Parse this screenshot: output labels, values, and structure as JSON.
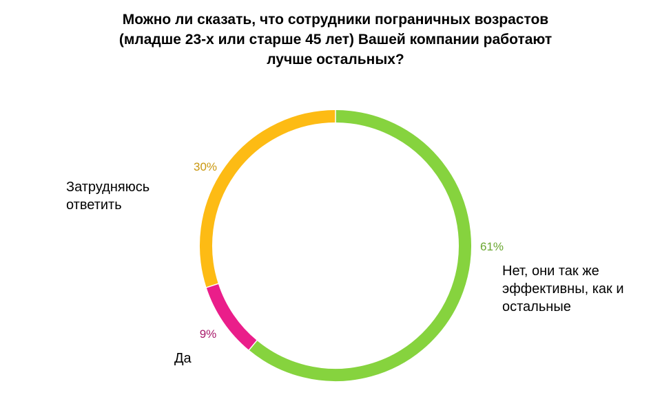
{
  "chart_data": {
    "type": "pie",
    "variant": "donut",
    "title": "Можно ли сказать, что сотрудники пограничных возрастов\n(младше 23-х или старше 45 лет) Вашей компании работают\nлучше остальных?",
    "slices": [
      {
        "label": "Нет, они так же\nэффективны, как и\nостальные",
        "value": 61,
        "value_label": "61%",
        "color": "#86d33e",
        "label_color": "#6aa630"
      },
      {
        "label": "Да",
        "value": 9,
        "value_label": "9%",
        "color": "#ea1e8a",
        "label_color": "#a8196a"
      },
      {
        "label": "Затрудняюсь\nответить",
        "value": 30,
        "value_label": "30%",
        "color": "#fdbb14",
        "label_color": "#c9970f"
      }
    ],
    "legend": "none"
  }
}
